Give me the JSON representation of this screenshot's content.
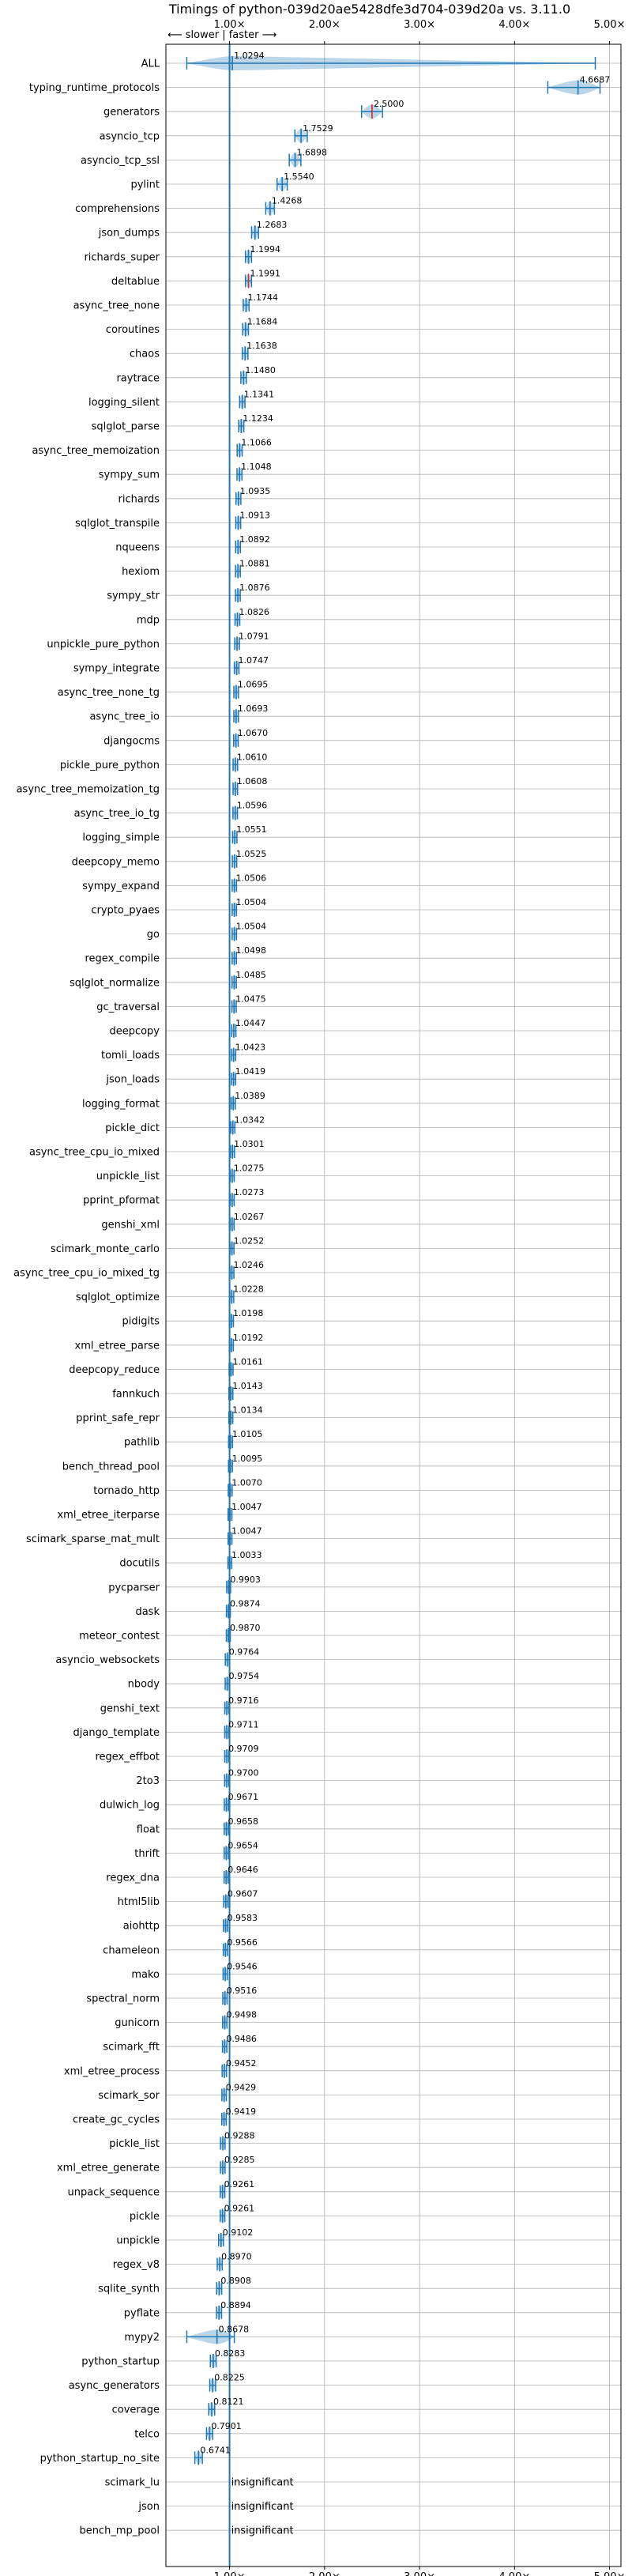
{
  "chart_data": {
    "type": "violin",
    "title": "Timings of python-039d20ae5428dfe3d704-039d20a vs. 3.11.0",
    "direction_label": "⟵ slower | faster ⟶",
    "x_ticks": [
      1,
      2,
      3,
      4,
      5
    ],
    "x_tick_labels": [
      "1.00×",
      "2.00×",
      "3.00×",
      "4.00×",
      "5.00×"
    ],
    "xlim": [
      0.33,
      5.12
    ],
    "reference_line": 1.0,
    "grid": true,
    "colors": {
      "violin": "#1f77b4",
      "significant_marker": "#d62728"
    },
    "categories": [
      "ALL",
      "typing_runtime_protocols",
      "generators",
      "asyncio_tcp",
      "asyncio_tcp_ssl",
      "pylint",
      "comprehensions",
      "json_dumps",
      "richards_super",
      "deltablue",
      "async_tree_none",
      "coroutines",
      "chaos",
      "raytrace",
      "logging_silent",
      "sqlglot_parse",
      "async_tree_memoization",
      "sympy_sum",
      "richards",
      "sqlglot_transpile",
      "nqueens",
      "hexiom",
      "sympy_str",
      "mdp",
      "unpickle_pure_python",
      "sympy_integrate",
      "async_tree_none_tg",
      "async_tree_io",
      "djangocms",
      "pickle_pure_python",
      "async_tree_memoization_tg",
      "async_tree_io_tg",
      "logging_simple",
      "deepcopy_memo",
      "sympy_expand",
      "crypto_pyaes",
      "go",
      "regex_compile",
      "sqlglot_normalize",
      "gc_traversal",
      "deepcopy",
      "tomli_loads",
      "json_loads",
      "logging_format",
      "pickle_dict",
      "async_tree_cpu_io_mixed",
      "unpickle_list",
      "pprint_pformat",
      "genshi_xml",
      "scimark_monte_carlo",
      "async_tree_cpu_io_mixed_tg",
      "sqlglot_optimize",
      "pidigits",
      "xml_etree_parse",
      "deepcopy_reduce",
      "fannkuch",
      "pprint_safe_repr",
      "pathlib",
      "bench_thread_pool",
      "tornado_http",
      "xml_etree_iterparse",
      "scimark_sparse_mat_mult",
      "docutils",
      "pycparser",
      "dask",
      "meteor_contest",
      "asyncio_websockets",
      "nbody",
      "genshi_text",
      "django_template",
      "regex_effbot",
      "2to3",
      "dulwich_log",
      "float",
      "thrift",
      "regex_dna",
      "html5lib",
      "aiohttp",
      "chameleon",
      "mako",
      "spectral_norm",
      "gunicorn",
      "scimark_fft",
      "xml_etree_process",
      "scimark_sor",
      "create_gc_cycles",
      "pickle_list",
      "xml_etree_generate",
      "unpack_sequence",
      "pickle",
      "unpickle",
      "regex_v8",
      "sqlite_synth",
      "pyflate",
      "mypy2",
      "python_startup",
      "async_generators",
      "coverage",
      "telco",
      "python_startup_no_site",
      "scimark_lu",
      "json",
      "bench_mp_pool"
    ],
    "values": [
      1.0294,
      4.6687,
      2.5,
      1.7529,
      1.6898,
      1.554,
      1.4268,
      1.2683,
      1.1994,
      1.1991,
      1.1744,
      1.1684,
      1.1638,
      1.148,
      1.1341,
      1.1234,
      1.1066,
      1.1048,
      1.0935,
      1.0913,
      1.0892,
      1.0881,
      1.0876,
      1.0826,
      1.0791,
      1.0747,
      1.0695,
      1.0693,
      1.067,
      1.061,
      1.0608,
      1.0596,
      1.0551,
      1.0525,
      1.0506,
      1.0504,
      1.0504,
      1.0498,
      1.0485,
      1.0475,
      1.0447,
      1.0423,
      1.0419,
      1.0389,
      1.0342,
      1.0301,
      1.0275,
      1.0273,
      1.0267,
      1.0252,
      1.0246,
      1.0228,
      1.0198,
      1.0192,
      1.0161,
      1.0143,
      1.0134,
      1.0105,
      1.0095,
      1.007,
      1.0047,
      1.0047,
      1.0033,
      0.9903,
      0.9874,
      0.987,
      0.9764,
      0.9754,
      0.9716,
      0.9711,
      0.9709,
      0.97,
      0.9671,
      0.9658,
      0.9654,
      0.9646,
      0.9607,
      0.9583,
      0.9566,
      0.9546,
      0.9516,
      0.9498,
      0.9486,
      0.9452,
      0.9429,
      0.9419,
      0.9288,
      0.9285,
      0.9261,
      0.9261,
      0.9102,
      0.897,
      0.8908,
      0.8894,
      0.8678,
      0.8283,
      0.8225,
      0.8121,
      0.7901,
      0.6741,
      null,
      null,
      null
    ],
    "value_labels": [
      "1.0294",
      "4.6687",
      "2.5000",
      "1.7529",
      "1.6898",
      "1.5540",
      "1.4268",
      "1.2683",
      "1.1994",
      "1.1991",
      "1.1744",
      "1.1684",
      "1.1638",
      "1.1480",
      "1.1341",
      "1.1234",
      "1.1066",
      "1.1048",
      "1.0935",
      "1.0913",
      "1.0892",
      "1.0881",
      "1.0876",
      "1.0826",
      "1.0791",
      "1.0747",
      "1.0695",
      "1.0693",
      "1.0670",
      "1.0610",
      "1.0608",
      "1.0596",
      "1.0551",
      "1.0525",
      "1.0506",
      "1.0504",
      "1.0504",
      "1.0498",
      "1.0485",
      "1.0475",
      "1.0447",
      "1.0423",
      "1.0419",
      "1.0389",
      "1.0342",
      "1.0301",
      "1.0275",
      "1.0273",
      "1.0267",
      "1.0252",
      "1.0246",
      "1.0228",
      "1.0198",
      "1.0192",
      "1.0161",
      "1.0143",
      "1.0134",
      "1.0105",
      "1.0095",
      "1.0070",
      "1.0047",
      "1.0047",
      "1.0033",
      "0.9903",
      "0.9874",
      "0.9870",
      "0.9764",
      "0.9754",
      "0.9716",
      "0.9711",
      "0.9709",
      "0.9700",
      "0.9671",
      "0.9658",
      "0.9654",
      "0.9646",
      "0.9607",
      "0.9583",
      "0.9566",
      "0.9546",
      "0.9516",
      "0.9498",
      "0.9486",
      "0.9452",
      "0.9429",
      "0.9419",
      "0.9288",
      "0.9285",
      "0.9261",
      "0.9261",
      "0.9102",
      "0.8970",
      "0.8908",
      "0.8894",
      "0.8678",
      "0.8283",
      "0.8225",
      "0.8121",
      "0.7901",
      "0.6741",
      "insignificant",
      "insignificant",
      "insignificant"
    ],
    "all_range": [
      0.55,
      4.85
    ],
    "typing_runtime_protocols_range": [
      4.35,
      4.9
    ],
    "mypy2_range": [
      0.55,
      1.05
    ],
    "significant_red_markers": [
      "generators",
      "deltablue"
    ]
  }
}
